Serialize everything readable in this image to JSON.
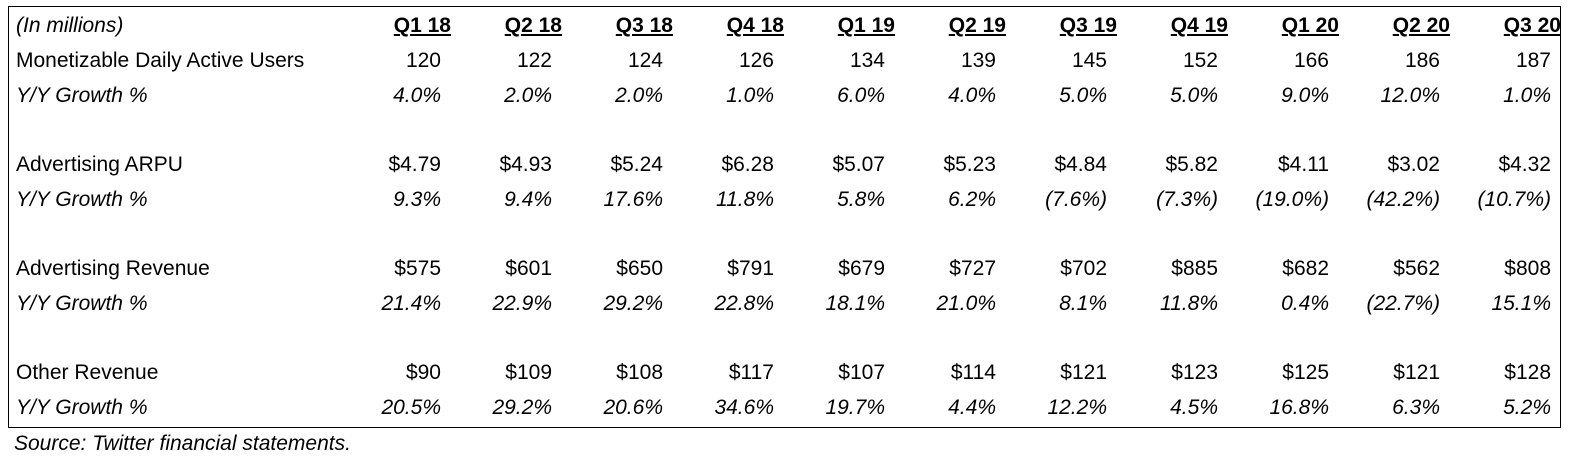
{
  "table": {
    "units": "(In millions)",
    "quarters": [
      "Q1 18",
      "Q2 18",
      "Q3 18",
      "Q4 18",
      "Q1 19",
      "Q2 19",
      "Q3 19",
      "Q4 19",
      "Q1 20",
      "Q2 20",
      "Q3 20"
    ],
    "sections": [
      {
        "label": "Monetizable Daily Active Users",
        "values": [
          "120",
          "122",
          "124",
          "126",
          "134",
          "139",
          "145",
          "152",
          "166",
          "186",
          "187"
        ],
        "growth_label": "Y/Y Growth %",
        "growth": [
          "4.0%",
          "2.0%",
          "2.0%",
          "1.0%",
          "6.0%",
          "4.0%",
          "5.0%",
          "5.0%",
          "9.0%",
          "12.0%",
          "1.0%"
        ]
      },
      {
        "label": "Advertising ARPU",
        "values": [
          "$4.79",
          "$4.93",
          "$5.24",
          "$6.28",
          "$5.07",
          "$5.23",
          "$4.84",
          "$5.82",
          "$4.11",
          "$3.02",
          "$4.32"
        ],
        "growth_label": "Y/Y Growth %",
        "growth": [
          "9.3%",
          "9.4%",
          "17.6%",
          "11.8%",
          "5.8%",
          "6.2%",
          "(7.6%)",
          "(7.3%)",
          "(19.0%)",
          "(42.2%)",
          "(10.7%)"
        ]
      },
      {
        "label": "Advertising Revenue",
        "values": [
          "$575",
          "$601",
          "$650",
          "$791",
          "$679",
          "$727",
          "$702",
          "$885",
          "$682",
          "$562",
          "$808"
        ],
        "growth_label": "Y/Y Growth %",
        "growth": [
          "21.4%",
          "22.9%",
          "29.2%",
          "22.8%",
          "18.1%",
          "21.0%",
          "8.1%",
          "11.8%",
          "0.4%",
          "(22.7%)",
          "15.1%"
        ]
      },
      {
        "label": "Other Revenue",
        "values": [
          "$90",
          "$109",
          "$108",
          "$117",
          "$107",
          "$114",
          "$121",
          "$123",
          "$125",
          "$121",
          "$128"
        ],
        "growth_label": "Y/Y Growth %",
        "growth": [
          "20.5%",
          "29.2%",
          "20.6%",
          "34.6%",
          "19.7%",
          "4.4%",
          "12.2%",
          "4.5%",
          "16.8%",
          "6.3%",
          "5.2%"
        ]
      }
    ]
  },
  "source_note": "Source: Twitter financial statements."
}
